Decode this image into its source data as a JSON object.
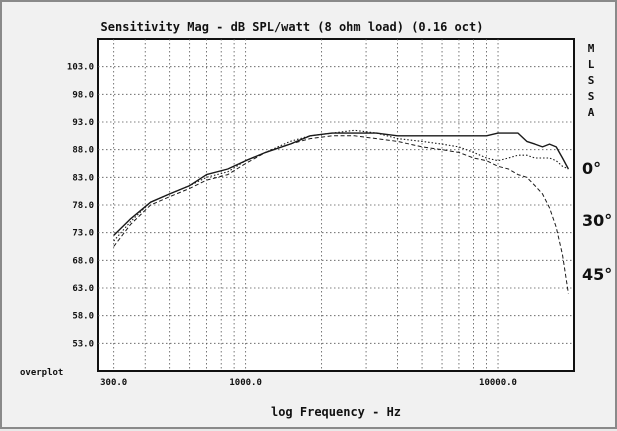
{
  "chart_data": {
    "type": "line",
    "title": "Sensitivity Mag - dB SPL/watt (8 ohm load) (0.16 oct)",
    "xlabel": "log Frequency - Hz",
    "ylabel": "",
    "x_scale": "log",
    "xlim": [
      260,
      20000
    ],
    "ylim": [
      48.0,
      108.0
    ],
    "grid": true,
    "y_ticks": [
      "103.0",
      "98.0",
      "93.0",
      "88.0",
      "83.0",
      "78.0",
      "73.0",
      "68.0",
      "63.0",
      "58.0",
      "53.0"
    ],
    "y_tick_values": [
      103,
      98,
      93,
      88,
      83,
      78,
      73,
      68,
      63,
      58,
      53
    ],
    "x_ticks": [
      "300.0",
      "1000.0",
      "10000.0"
    ],
    "x_tick_values": [
      300,
      1000,
      10000
    ],
    "left_label": "overplot",
    "legend_letters": [
      "M",
      "L",
      "S",
      "S",
      "A"
    ],
    "series": [
      {
        "name": "0°",
        "style": "solid",
        "x": [
          300,
          350,
          420,
          500,
          600,
          700,
          850,
          1000,
          1200,
          1500,
          1800,
          2200,
          2700,
          3300,
          4000,
          5000,
          6000,
          7000,
          8000,
          9000,
          10000,
          11000,
          12000,
          13000,
          14000,
          15000,
          16000,
          17000,
          18000,
          19000
        ],
        "y": [
          72.5,
          75.5,
          78.5,
          80.0,
          81.5,
          83.5,
          84.5,
          86.0,
          87.5,
          89.0,
          90.5,
          91.0,
          91.0,
          91.0,
          90.5,
          90.5,
          90.5,
          90.5,
          90.5,
          90.5,
          91.0,
          91.0,
          91.0,
          89.5,
          89.0,
          88.5,
          89.0,
          88.5,
          86.5,
          84.5
        ]
      },
      {
        "name": "30°",
        "style": "dotted",
        "x": [
          300,
          350,
          420,
          500,
          600,
          700,
          850,
          1000,
          1200,
          1500,
          1800,
          2200,
          2700,
          3300,
          4000,
          5000,
          6000,
          7000,
          8000,
          9000,
          10000,
          11000,
          12000,
          13000,
          14000,
          15000,
          16000,
          17000,
          18000,
          19000
        ],
        "y": [
          71.5,
          75.0,
          78.5,
          80.0,
          81.5,
          83.0,
          84.0,
          86.0,
          87.5,
          89.5,
          90.5,
          91.0,
          91.5,
          91.0,
          90.0,
          89.5,
          89.0,
          88.5,
          87.5,
          86.5,
          86.0,
          86.5,
          87.0,
          87.0,
          86.5,
          86.5,
          86.5,
          86.0,
          85.0,
          84.5
        ]
      },
      {
        "name": "45°",
        "style": "dashed",
        "x": [
          300,
          350,
          420,
          500,
          600,
          700,
          850,
          1000,
          1200,
          1500,
          1800,
          2200,
          2700,
          3300,
          4000,
          5000,
          6000,
          7000,
          8000,
          9000,
          10000,
          11000,
          12000,
          13000,
          14000,
          15000,
          16000,
          17000,
          18000,
          19000
        ],
        "y": [
          70.5,
          74.5,
          78.0,
          79.5,
          81.0,
          82.5,
          83.5,
          85.5,
          87.5,
          89.0,
          90.0,
          90.5,
          90.5,
          90.0,
          89.5,
          88.5,
          88.0,
          87.5,
          86.5,
          86.0,
          85.0,
          84.5,
          83.5,
          83.0,
          81.5,
          80.0,
          77.5,
          74.0,
          69.0,
          62.0
        ]
      }
    ]
  }
}
